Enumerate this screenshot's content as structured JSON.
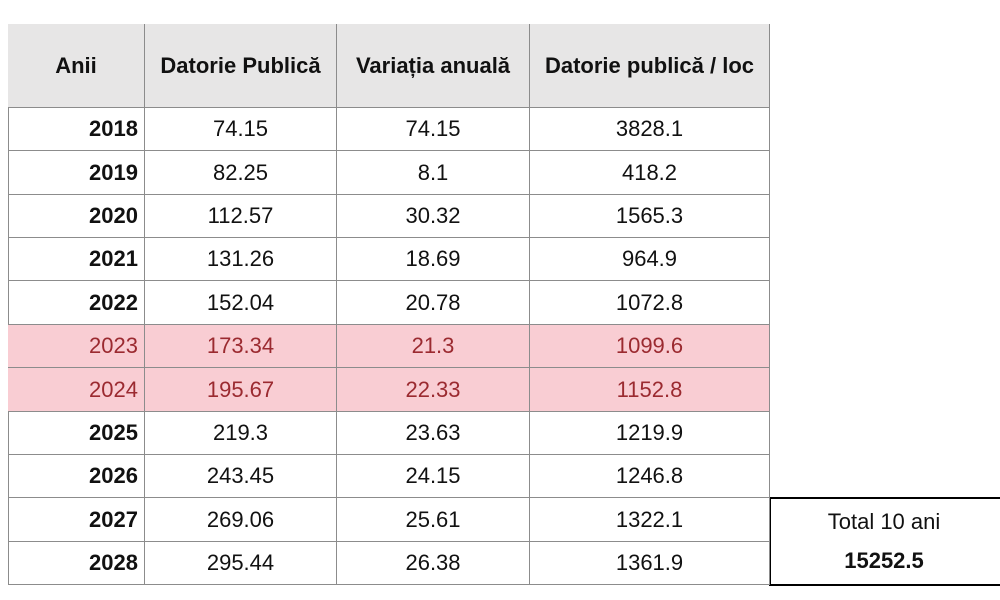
{
  "table": {
    "header": [
      "Anii",
      "Datorie Publică",
      "Variația anuală",
      "Datorie publică / loc"
    ],
    "rows": [
      [
        "2018",
        "74.15",
        "74.15",
        "3828.1"
      ],
      [
        "2019",
        "82.25",
        "8.1",
        "418.2"
      ],
      [
        "2020",
        "112.57",
        "30.32",
        "1565.3"
      ],
      [
        "2021",
        "131.26",
        "18.69",
        "964.9"
      ],
      [
        "2022",
        "152.04",
        "20.78",
        "1072.8"
      ],
      [
        "2023",
        "173.34",
        "21.3",
        "1099.6"
      ],
      [
        "2024",
        "195.67",
        "22.33",
        "1152.8"
      ],
      [
        "2025",
        "219.3",
        "23.63",
        "1219.9"
      ],
      [
        "2026",
        "243.45",
        "24.15",
        "1246.8"
      ],
      [
        "2027",
        "269.06",
        "25.61",
        "1322.1"
      ],
      [
        "2028",
        "295.44",
        "26.38",
        "1361.9"
      ]
    ]
  },
  "total": {
    "label": "Total 10 ani",
    "value": "15252.5"
  }
}
